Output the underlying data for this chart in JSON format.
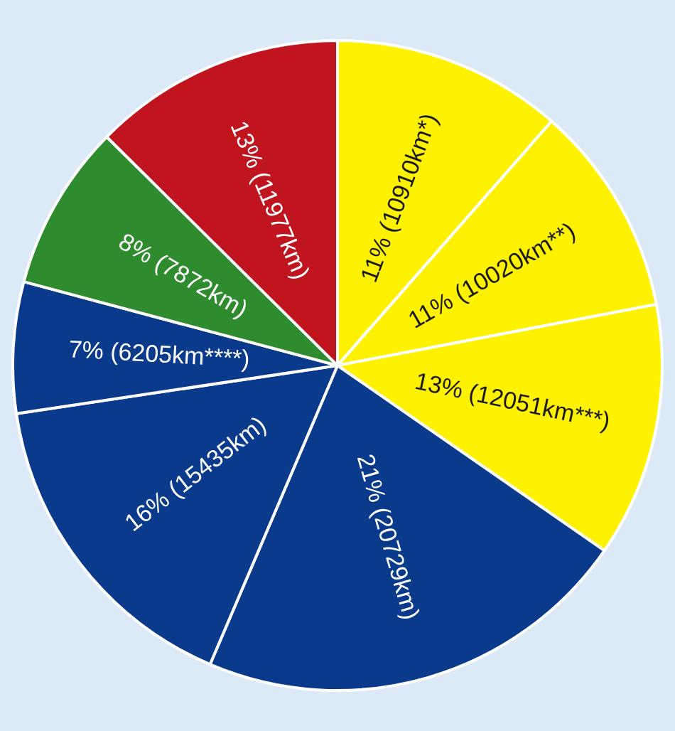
{
  "chart_data": {
    "type": "pie",
    "categories": [
      null,
      null,
      null,
      null,
      null,
      null,
      null,
      null
    ],
    "values": [
      10910,
      10020,
      12051,
      20729,
      15435,
      6205,
      7872,
      11977
    ],
    "colors": [
      "#fff200",
      "#fff200",
      "#fff200",
      "#0a3a8c",
      "#0a3a8c",
      "#0a3a8c",
      "#2e8b2e",
      "#c0141e"
    ],
    "value_labels": [
      "11% (10910km*)",
      "11% (10020km**)",
      "13% (12051km***)",
      "21% (20729km)",
      "16% (15435km)",
      "7% (6205km****)",
      "8% (7872km)",
      "13% (11977km)"
    ],
    "legend": false
  }
}
